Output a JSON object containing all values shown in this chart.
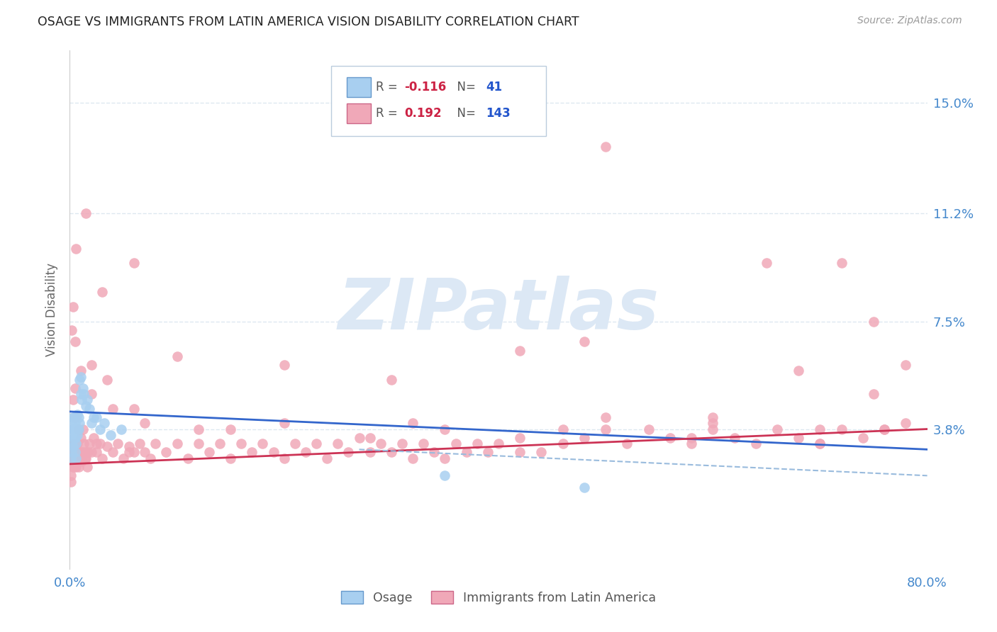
{
  "title": "OSAGE VS IMMIGRANTS FROM LATIN AMERICA VISION DISABILITY CORRELATION CHART",
  "source": "Source: ZipAtlas.com",
  "ylabel": "Vision Disability",
  "ytick_labels": [
    "3.8%",
    "7.5%",
    "11.2%",
    "15.0%"
  ],
  "ytick_values": [
    0.038,
    0.075,
    0.112,
    0.15
  ],
  "xlim": [
    0.0,
    0.8
  ],
  "ylim": [
    -0.01,
    0.168
  ],
  "osage_color": "#a8cff0",
  "latin_color": "#f0a8b8",
  "trend_blue": "#3366cc",
  "trend_pink": "#cc3355",
  "trend_dashed_color": "#99bbdd",
  "watermark": "ZIPatlas",
  "watermark_color": "#dce8f5",
  "label_color": "#4488cc",
  "grid_color": "#dde8f0",
  "background_color": "#ffffff",
  "osage_x": [
    0.001,
    0.001,
    0.002,
    0.002,
    0.002,
    0.003,
    0.003,
    0.003,
    0.004,
    0.004,
    0.004,
    0.005,
    0.005,
    0.005,
    0.006,
    0.006,
    0.006,
    0.007,
    0.007,
    0.007,
    0.008,
    0.008,
    0.009,
    0.009,
    0.01,
    0.01,
    0.011,
    0.012,
    0.013,
    0.015,
    0.016,
    0.018,
    0.02,
    0.022,
    0.025,
    0.028,
    0.032,
    0.038,
    0.048,
    0.35,
    0.48
  ],
  "osage_y": [
    0.028,
    0.033,
    0.03,
    0.036,
    0.04,
    0.032,
    0.038,
    0.042,
    0.035,
    0.038,
    0.042,
    0.03,
    0.035,
    0.04,
    0.033,
    0.038,
    0.028,
    0.036,
    0.038,
    0.043,
    0.038,
    0.042,
    0.04,
    0.055,
    0.05,
    0.056,
    0.048,
    0.052,
    0.05,
    0.046,
    0.048,
    0.045,
    0.04,
    0.042,
    0.042,
    0.038,
    0.04,
    0.036,
    0.038,
    0.022,
    0.018
  ],
  "latin_x": [
    0.001,
    0.001,
    0.002,
    0.002,
    0.003,
    0.003,
    0.004,
    0.004,
    0.005,
    0.005,
    0.006,
    0.006,
    0.007,
    0.007,
    0.008,
    0.008,
    0.009,
    0.01,
    0.011,
    0.012,
    0.013,
    0.014,
    0.015,
    0.016,
    0.017,
    0.018,
    0.02,
    0.022,
    0.025,
    0.028,
    0.03,
    0.035,
    0.04,
    0.045,
    0.05,
    0.055,
    0.06,
    0.065,
    0.07,
    0.075,
    0.08,
    0.09,
    0.1,
    0.11,
    0.12,
    0.13,
    0.14,
    0.15,
    0.16,
    0.17,
    0.18,
    0.19,
    0.2,
    0.21,
    0.22,
    0.23,
    0.24,
    0.25,
    0.26,
    0.27,
    0.28,
    0.29,
    0.3,
    0.31,
    0.32,
    0.33,
    0.34,
    0.35,
    0.36,
    0.37,
    0.38,
    0.39,
    0.4,
    0.42,
    0.44,
    0.46,
    0.48,
    0.5,
    0.52,
    0.54,
    0.56,
    0.58,
    0.6,
    0.62,
    0.64,
    0.66,
    0.68,
    0.7,
    0.72,
    0.74,
    0.76,
    0.78,
    0.003,
    0.005,
    0.008,
    0.012,
    0.02,
    0.035,
    0.06,
    0.1,
    0.15,
    0.2,
    0.28,
    0.35,
    0.42,
    0.5,
    0.6,
    0.7,
    0.005,
    0.01,
    0.02,
    0.04,
    0.07,
    0.12,
    0.2,
    0.32,
    0.46,
    0.6,
    0.72,
    0.003,
    0.006,
    0.015,
    0.03,
    0.06,
    0.48,
    0.68,
    0.75,
    0.78,
    0.002,
    0.005,
    0.01,
    0.025,
    0.055,
    0.42,
    0.58,
    0.7,
    0.76,
    0.3,
    0.5,
    0.65,
    0.75,
    0.001,
    0.004,
    0.015
  ],
  "latin_y": [
    0.022,
    0.03,
    0.028,
    0.032,
    0.025,
    0.03,
    0.028,
    0.033,
    0.027,
    0.032,
    0.025,
    0.03,
    0.028,
    0.033,
    0.03,
    0.025,
    0.028,
    0.03,
    0.027,
    0.03,
    0.033,
    0.028,
    0.03,
    0.025,
    0.03,
    0.033,
    0.03,
    0.035,
    0.03,
    0.033,
    0.028,
    0.032,
    0.03,
    0.033,
    0.028,
    0.032,
    0.03,
    0.033,
    0.03,
    0.028,
    0.033,
    0.03,
    0.033,
    0.028,
    0.033,
    0.03,
    0.033,
    0.028,
    0.033,
    0.03,
    0.033,
    0.03,
    0.028,
    0.033,
    0.03,
    0.033,
    0.028,
    0.033,
    0.03,
    0.035,
    0.03,
    0.033,
    0.03,
    0.033,
    0.028,
    0.033,
    0.03,
    0.028,
    0.033,
    0.03,
    0.033,
    0.03,
    0.033,
    0.035,
    0.03,
    0.033,
    0.035,
    0.038,
    0.033,
    0.038,
    0.035,
    0.033,
    0.038,
    0.035,
    0.033,
    0.038,
    0.035,
    0.033,
    0.038,
    0.035,
    0.038,
    0.04,
    0.048,
    0.042,
    0.038,
    0.038,
    0.06,
    0.055,
    0.045,
    0.063,
    0.038,
    0.04,
    0.035,
    0.038,
    0.03,
    0.042,
    0.04,
    0.038,
    0.052,
    0.058,
    0.05,
    0.045,
    0.04,
    0.038,
    0.06,
    0.04,
    0.038,
    0.042,
    0.095,
    0.08,
    0.1,
    0.112,
    0.085,
    0.095,
    0.068,
    0.058,
    0.05,
    0.06,
    0.072,
    0.068,
    0.035,
    0.033,
    0.03,
    0.065,
    0.035,
    0.033,
    0.038,
    0.055,
    0.135,
    0.095,
    0.075,
    0.02,
    0.025,
    0.028
  ]
}
